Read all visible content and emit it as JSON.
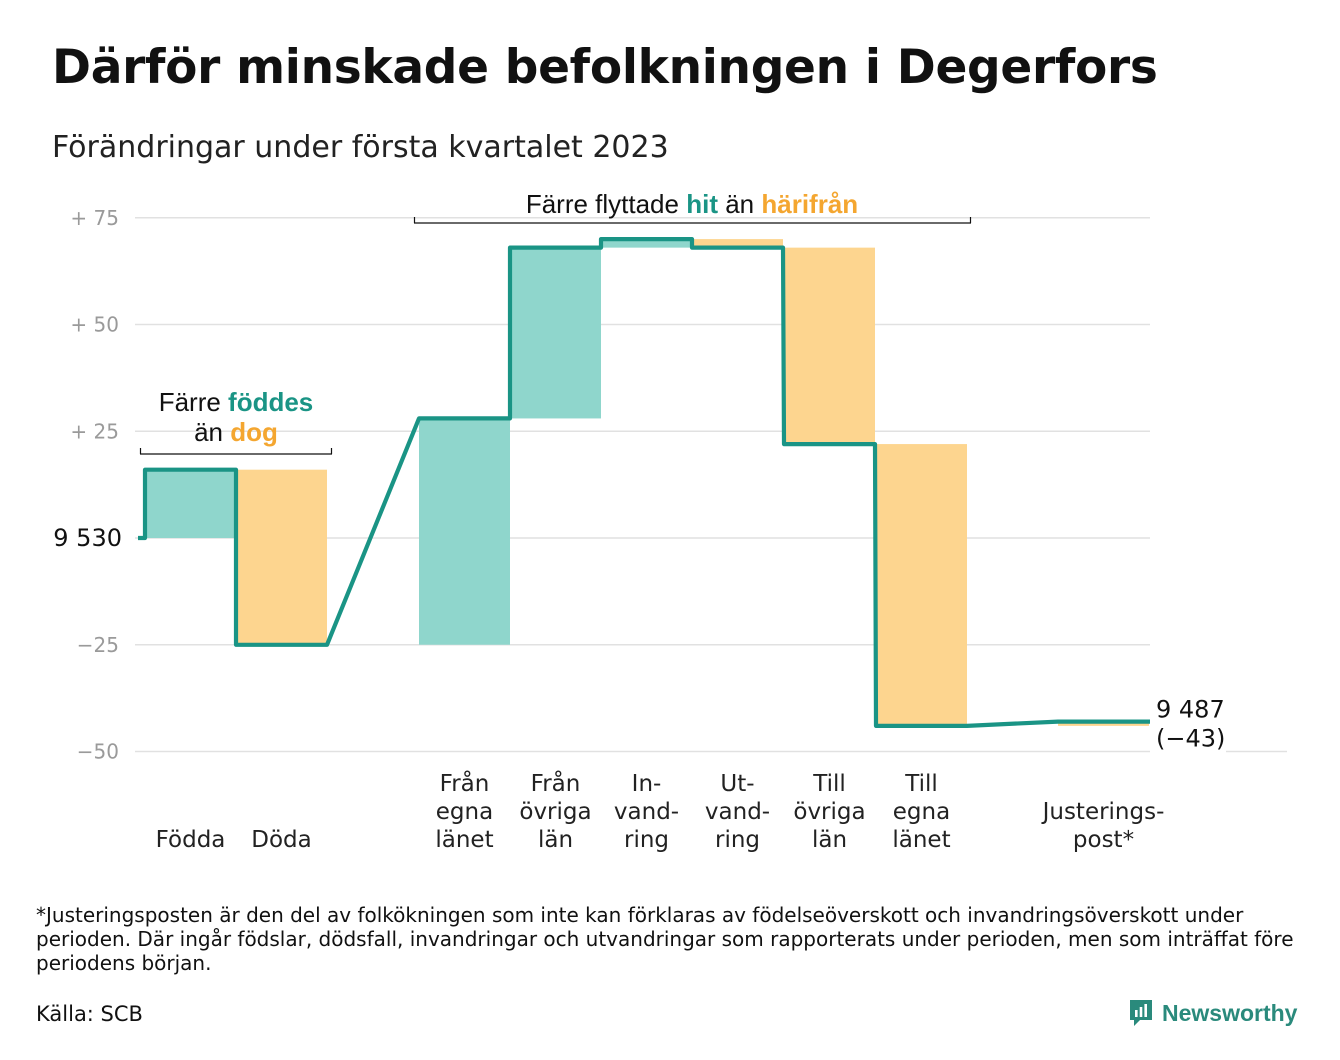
{
  "title": "Därför minskade befolkningen i Degerfors",
  "subtitle": "Förändringar under första kvartalet 2023",
  "footnote": "*Justeringsposten är den del av folkökningen som inte kan förklaras av födelseöverskott och invandringsöverskott under perioden. Där ingår födslar, dödsfall, invandringar och utvandringar som rapporterats under perioden, men som inträffat före periodens början.",
  "source": "Källa: SCB",
  "brand": {
    "name": "Newsworthy",
    "icon": "newsworthy-logo-icon"
  },
  "colors": {
    "inflow": "#8fd6cc",
    "outflow": "#fdd58f",
    "line": "#1a9485",
    "accent_teal": "#1a9485",
    "accent_orange": "#f4a630",
    "grid": "#e1e1e1",
    "tick": "#9a9a9a"
  },
  "chart_data": {
    "type": "bar",
    "subtype": "waterfall",
    "start_value": 9530,
    "end_value": 9487,
    "net_change": -43,
    "start_label": "9 530",
    "end_label": "9 487",
    "end_change_label": "(−43)",
    "ylim": [
      -52,
      78
    ],
    "y_ticks": [
      {
        "value": 75,
        "label": "+ 75"
      },
      {
        "value": 50,
        "label": "+ 50"
      },
      {
        "value": 25,
        "label": "+ 25"
      },
      {
        "value": -25,
        "label": "−25"
      },
      {
        "value": -50,
        "label": "−50"
      }
    ],
    "grid": true,
    "legend": null,
    "categories": [
      {
        "key": "fodda",
        "label": [
          "Födda"
        ],
        "delta": 16,
        "kind": "in"
      },
      {
        "key": "doda",
        "label": [
          "Döda"
        ],
        "delta": -41,
        "kind": "out"
      },
      {
        "key": "egna_in",
        "label": [
          "Från",
          "egna",
          "länet"
        ],
        "delta": 53,
        "kind": "in"
      },
      {
        "key": "ovr_in",
        "label": [
          "Från",
          "övriga",
          "län"
        ],
        "delta": 40,
        "kind": "in"
      },
      {
        "key": "invand",
        "label": [
          "In-",
          "vand-",
          "ring"
        ],
        "delta": 2,
        "kind": "in"
      },
      {
        "key": "utvand",
        "label": [
          "Ut-",
          "vand-",
          "ring"
        ],
        "delta": -2,
        "kind": "out"
      },
      {
        "key": "ovr_ut",
        "label": [
          "Till",
          "övriga",
          "län"
        ],
        "delta": -46,
        "kind": "out"
      },
      {
        "key": "egna_ut",
        "label": [
          "Till",
          "egna",
          "länet"
        ],
        "delta": -66,
        "kind": "out"
      },
      {
        "key": "just",
        "label": [
          "Justerings-",
          "post*"
        ],
        "delta": 1,
        "kind": "out"
      }
    ],
    "annotations": {
      "births": {
        "line1_prefix": "Färre ",
        "line1_highlight": "föddes",
        "line2_prefix": "än ",
        "line2_highlight": "dog"
      },
      "migration": {
        "prefix": "Färre flyttade ",
        "highlight1": "hit",
        "middle": " än ",
        "highlight2": "härifrån"
      }
    }
  }
}
